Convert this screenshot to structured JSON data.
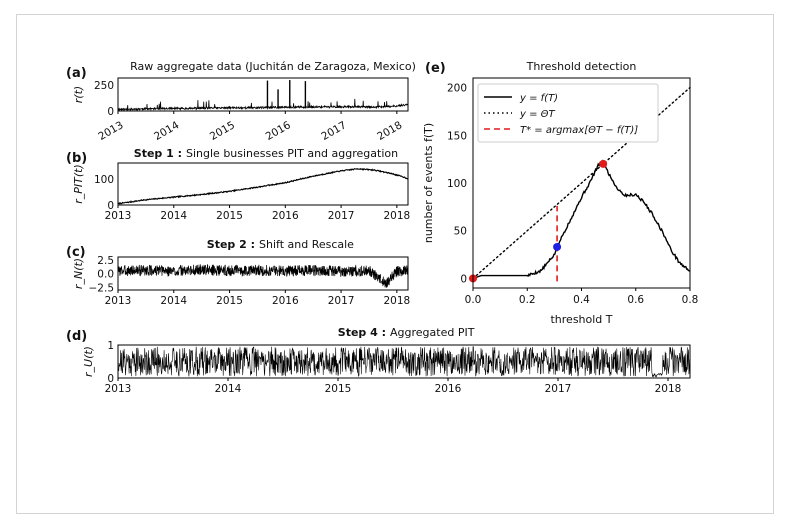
{
  "chart_data": [
    {
      "panel": "(a)",
      "type": "line",
      "title": "Raw aggregate data (Juchitán de Zaragoza, Mexico)",
      "ylabel": "r(t)",
      "x_ticks": [
        "2013",
        "2014",
        "2015",
        "2016",
        "2017",
        "2018"
      ],
      "x_tick_rotation": 30,
      "y_ticks": [
        "0",
        "250"
      ],
      "xlim": [
        2013.0,
        2018.2
      ],
      "ylim": [
        0,
        320
      ],
      "series": [
        {
          "values": [
            [
              2013.0,
              12
            ],
            [
              2013.4,
              16
            ],
            [
              2013.8,
              20
            ],
            [
              2014.2,
              22
            ],
            [
              2014.6,
              25
            ],
            [
              2015.0,
              27
            ],
            [
              2015.4,
              28
            ],
            [
              2015.65,
              30
            ],
            [
              2015.68,
              295
            ],
            [
              2015.71,
              30
            ],
            [
              2015.85,
              32
            ],
            [
              2015.87,
              210
            ],
            [
              2015.89,
              32
            ],
            [
              2016.05,
              34
            ],
            [
              2016.08,
              300
            ],
            [
              2016.11,
              34
            ],
            [
              2016.33,
              35
            ],
            [
              2016.36,
              290
            ],
            [
              2016.39,
              35
            ],
            [
              2016.8,
              36
            ],
            [
              2017.2,
              38
            ],
            [
              2017.6,
              35
            ],
            [
              2017.9,
              40
            ],
            [
              2018.2,
              60
            ]
          ]
        }
      ]
    },
    {
      "panel": "(b)",
      "type": "line",
      "title_bold": "Step 1 :",
      "title": "Single businesses PIT and aggregation",
      "ylabel": "r_PIT(t)",
      "x_ticks": [
        "2013",
        "2014",
        "2015",
        "2016",
        "2017",
        "2018"
      ],
      "y_ticks": [
        "0",
        "100"
      ],
      "xlim": [
        2013.0,
        2018.2
      ],
      "ylim": [
        0,
        160
      ],
      "series": [
        {
          "values": [
            [
              2013.0,
              5
            ],
            [
              2013.5,
              20
            ],
            [
              2014.0,
              30
            ],
            [
              2014.5,
              40
            ],
            [
              2015.0,
              52
            ],
            [
              2015.5,
              68
            ],
            [
              2016.0,
              85
            ],
            [
              2016.5,
              110
            ],
            [
              2017.0,
              130
            ],
            [
              2017.3,
              138
            ],
            [
              2017.6,
              133
            ],
            [
              2017.9,
              120
            ],
            [
              2018.1,
              108
            ],
            [
              2018.2,
              100
            ]
          ]
        }
      ]
    },
    {
      "panel": "(c)",
      "type": "line",
      "title_bold": "Step 2 :",
      "title": "Shift and Rescale",
      "ylabel": "r_N(t)",
      "x_ticks": [
        "2013",
        "2014",
        "2015",
        "2016",
        "2017",
        "2018"
      ],
      "y_ticks": [
        "2.5",
        "0.0",
        "−2.5"
      ],
      "xlim": [
        2013.0,
        2018.2
      ],
      "ylim": [
        -3,
        3
      ],
      "series": [
        {
          "values": [
            [
              2013.0,
              0.5
            ],
            [
              2013.5,
              0.6
            ],
            [
              2014.0,
              0.4
            ],
            [
              2014.5,
              0.7
            ],
            [
              2015.0,
              0.5
            ],
            [
              2015.5,
              0.6
            ],
            [
              2016.0,
              0.5
            ],
            [
              2016.5,
              0.6
            ],
            [
              2017.0,
              0.4
            ],
            [
              2017.5,
              0.5
            ],
            [
              2017.8,
              -1.8
            ],
            [
              2018.0,
              0.3
            ],
            [
              2018.2,
              0.6
            ]
          ],
          "spread": 1.0
        }
      ]
    },
    {
      "panel": "(d)",
      "type": "line",
      "title_bold": "Step 4 :",
      "title": "Aggregated PIT",
      "ylabel": "r_U(t)",
      "x_ticks": [
        "2013",
        "2014",
        "2015",
        "2016",
        "2017",
        "2018"
      ],
      "y_ticks": [
        "0",
        "1"
      ],
      "xlim": [
        2013.0,
        2018.2
      ],
      "ylim": [
        0,
        1
      ],
      "series": [
        {
          "values": [
            [
              2013.0,
              0.5
            ],
            [
              2018.2,
              0.5
            ]
          ],
          "range": [
            0,
            1
          ],
          "low_segment": [
            2017.85,
            2017.95
          ]
        }
      ]
    },
    {
      "panel": "(e)",
      "type": "line",
      "title": "Threshold detection",
      "xlabel": "threshold T",
      "ylabel": "number of events f(T)",
      "x_ticks": [
        "0.0",
        "0.2",
        "0.4",
        "0.6",
        "0.8"
      ],
      "y_ticks": [
        "0",
        "50",
        "100",
        "150",
        "200"
      ],
      "xlim": [
        0,
        0.8
      ],
      "ylim": [
        -10,
        210
      ],
      "legend_position": "upper-left",
      "series": [
        {
          "name": "y = f(T)",
          "style": "solid",
          "color": "#000000",
          "values": [
            [
              0.0,
              0
            ],
            [
              0.03,
              3
            ],
            [
              0.1,
              3
            ],
            [
              0.2,
              3
            ],
            [
              0.25,
              8
            ],
            [
              0.28,
              18
            ],
            [
              0.3,
              25
            ],
            [
              0.31,
              33
            ],
            [
              0.33,
              45
            ],
            [
              0.36,
              62
            ],
            [
              0.4,
              85
            ],
            [
              0.43,
              100
            ],
            [
              0.46,
              118
            ],
            [
              0.48,
              122
            ],
            [
              0.5,
              110
            ],
            [
              0.53,
              95
            ],
            [
              0.56,
              87
            ],
            [
              0.6,
              88
            ],
            [
              0.63,
              80
            ],
            [
              0.66,
              68
            ],
            [
              0.7,
              48
            ],
            [
              0.73,
              30
            ],
            [
              0.76,
              17
            ],
            [
              0.78,
              12
            ],
            [
              0.8,
              8
            ]
          ]
        },
        {
          "name": "y = ΘT",
          "style": "dotted",
          "color": "#000000",
          "values": [
            [
              0.0,
              0
            ],
            [
              0.8,
              200
            ]
          ]
        },
        {
          "name": "T* = argmax[ΘT − f(T)]",
          "style": "dashed",
          "color": "#e11a1a",
          "values": [
            [
              0.31,
              -3
            ],
            [
              0.31,
              76
            ]
          ]
        }
      ],
      "markers": [
        {
          "x": 0.0,
          "y": 0,
          "color": "#e11a1a"
        },
        {
          "x": 0.31,
          "y": 33,
          "color": "#1f1fe6"
        },
        {
          "x": 0.48,
          "y": 120,
          "color": "#e11a1a"
        }
      ]
    }
  ]
}
